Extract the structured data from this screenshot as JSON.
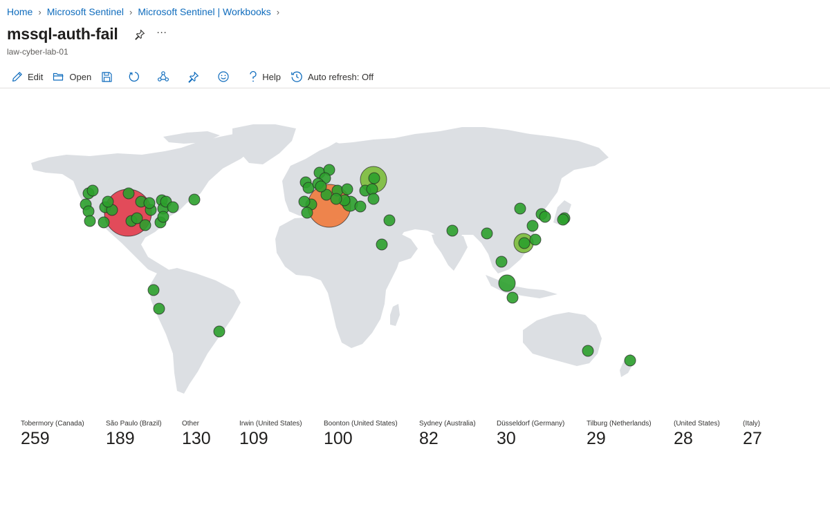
{
  "breadcrumb": [
    {
      "label": "Home"
    },
    {
      "label": "Microsoft Sentinel"
    },
    {
      "label": "Microsoft Sentinel | Workbooks"
    }
  ],
  "header": {
    "title": "mssql-auth-fail",
    "subtitle": "law-cyber-lab-01",
    "more_label": "···"
  },
  "toolbar": {
    "edit_label": "Edit",
    "open_label": "Open",
    "help_label": "Help",
    "autorefresh_label": "Auto refresh: Off",
    "icons": [
      "edit-icon",
      "open-icon",
      "save-icon",
      "refresh-icon",
      "share-icon",
      "pin-icon",
      "feedback-icon",
      "help-icon",
      "history-icon"
    ]
  },
  "colors": {
    "accent": "#0f6cbd",
    "land": "#dcdfe3",
    "bubble_green": "#2ca02c",
    "bubble_light_green": "#7bbd3a",
    "bubble_orange": "#f07a3b",
    "bubble_red": "#e23b4a"
  },
  "tiles": [
    {
      "label": "Tobermory (Canada)",
      "value": "259"
    },
    {
      "label": "São Paulo (Brazil)",
      "value": "189"
    },
    {
      "label": "Other",
      "value": "130"
    },
    {
      "label": "Irwin (United States)",
      "value": "109"
    },
    {
      "label": "Boonton (United States)",
      "value": "100"
    },
    {
      "label": "Sydney (Australia)",
      "value": "82"
    },
    {
      "label": "Düsseldorf (Germany)",
      "value": "30"
    },
    {
      "label": "Tilburg (Netherlands)",
      "value": "29"
    },
    {
      "label": "(United States)",
      "value": "28"
    },
    {
      "label": "(Italy)",
      "value": "27"
    }
  ]
}
